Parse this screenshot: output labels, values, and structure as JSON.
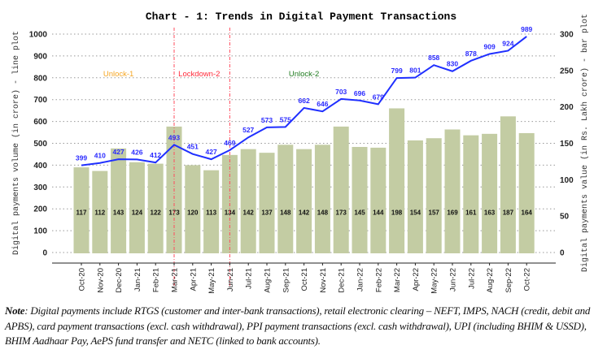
{
  "chart_data": {
    "type": "bar+line",
    "title": "Chart - 1: Trends in Digital Payment Transactions",
    "categories": [
      "Oct-20",
      "Nov-20",
      "Dec-20",
      "Jan-21",
      "Feb-21",
      "Mar-21",
      "Apr-21",
      "May-21",
      "Jun-21",
      "Jul-21",
      "Aug-21",
      "Sep-21",
      "Oct-21",
      "Nov-21",
      "Dec-21",
      "Jan-22",
      "Feb-22",
      "Mar-22",
      "Apr-22",
      "May-22",
      "Jun-22",
      "Jul-22",
      "Aug-22",
      "Sep-22",
      "Oct-22"
    ],
    "series": [
      {
        "name": "Digital payments volume (in crore)",
        "type": "line",
        "axis": "left",
        "color": "#1f2fff",
        "values": [
          399,
          410,
          427,
          426,
          412,
          493,
          451,
          427,
          469,
          527,
          573,
          575,
          662,
          646,
          703,
          696,
          679,
          799,
          801,
          858,
          830,
          878,
          909,
          924,
          989
        ]
      },
      {
        "name": "Digital payments value (in Rs. Lakh crore)",
        "type": "bar",
        "axis": "right",
        "color": "#c3cca3",
        "values": [
          117,
          112,
          143,
          124,
          122,
          173,
          120,
          113,
          134,
          142,
          137,
          148,
          142,
          148,
          173,
          145,
          144,
          198,
          154,
          157,
          169,
          161,
          163,
          187,
          164
        ]
      }
    ],
    "ylabel": "Digital payments volume (in crore) - line plot",
    "y2label": "Digital payments value (in Rs. Lakh crore) - bar plot",
    "ylim": [
      0,
      1000
    ],
    "yticks": [
      0,
      100,
      200,
      300,
      400,
      500,
      600,
      700,
      800,
      900,
      1000
    ],
    "y2lim": [
      0,
      300
    ],
    "y2ticks": [
      0,
      50,
      100,
      150,
      200,
      250,
      300
    ],
    "grid": true,
    "vlines": [
      {
        "at": "Mar-21",
        "color": "#ff4d5e"
      },
      {
        "at": "Jun-21",
        "color": "#ff4d5e"
      }
    ],
    "annotations": [
      {
        "text": "Unlock-1",
        "color": "#f5a623",
        "at": "Dec-20"
      },
      {
        "text": "Lockdown-2",
        "color": "#ff2a3a",
        "at": "Apr-21"
      },
      {
        "text": "Unlock-2",
        "color": "#1f7a1f",
        "at": "Oct-21"
      }
    ]
  },
  "note": {
    "label": "Note",
    "text": ": Digital payments include RTGS (customer and inter-bank transactions), retail electronic clearing – NEFT, IMPS, NACH (credit, debit and APBS), card payment transactions (excl. cash withdrawal), PPI payment transactions (excl. cash withdrawal), UPI (including BHIM & USSD), BHIM Aadhaar Pay, AePS fund transfer and NETC (linked to bank accounts)."
  }
}
